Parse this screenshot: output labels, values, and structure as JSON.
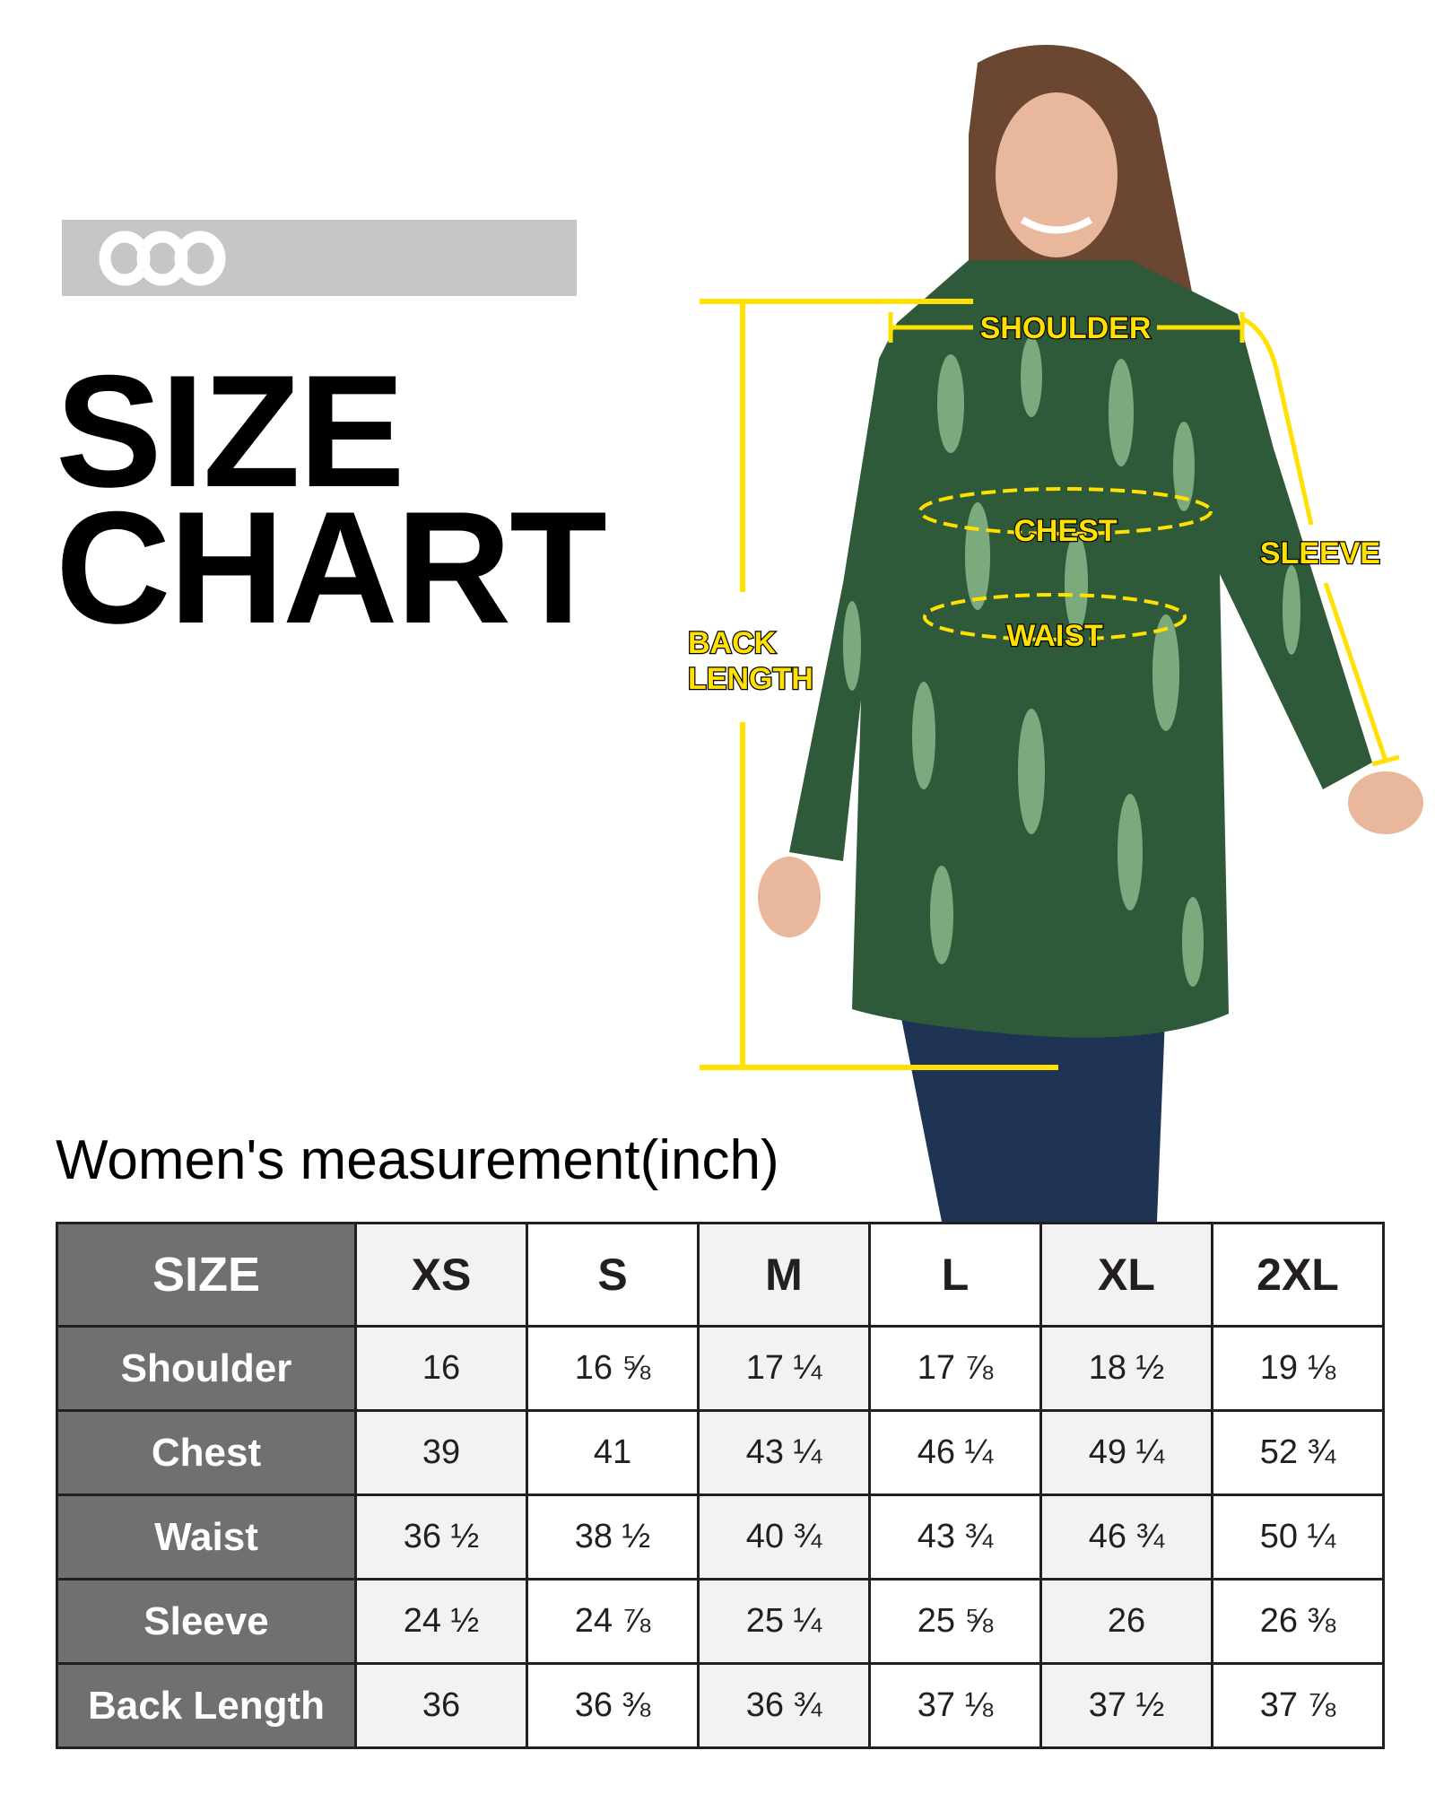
{
  "brand": {
    "logo": "ooo",
    "bar_color": "#c6c6c6"
  },
  "title": {
    "line1": "SIZE",
    "line2": "CHART"
  },
  "subtitle": "Women's measurement(inch)",
  "annotations": {
    "shoulder": "SHOULDER",
    "chest": "CHEST",
    "waist": "WAIST",
    "sleeve": "SLEEVE",
    "back_line1": "BACK",
    "back_line2": "LENGTH",
    "color": "#ffe000"
  },
  "table": {
    "corner": "SIZE",
    "sizes": [
      "XS",
      "S",
      "M",
      "L",
      "XL",
      "2XL"
    ],
    "rows": [
      {
        "label": "Shoulder",
        "values": [
          "16",
          "16 ⅝",
          "17 ¼",
          "17 ⅞",
          "18 ½",
          "19 ⅛"
        ]
      },
      {
        "label": "Chest",
        "values": [
          "39",
          "41",
          "43 ¼",
          "46 ¼",
          "49 ¼",
          "52 ¾"
        ]
      },
      {
        "label": "Waist",
        "values": [
          "36 ½",
          "38 ½",
          "40 ¾",
          "43 ¾",
          "46 ¾",
          "50 ¼"
        ]
      },
      {
        "label": "Sleeve",
        "values": [
          "24 ½",
          "24 ⅞",
          "25 ¼",
          "25 ⅝",
          "26",
          "26 ⅜"
        ]
      },
      {
        "label": "Back Length",
        "values": [
          "36",
          "36 ⅜",
          "36 ¾",
          "37 ⅛",
          "37 ½",
          "37 ⅞"
        ]
      }
    ]
  }
}
